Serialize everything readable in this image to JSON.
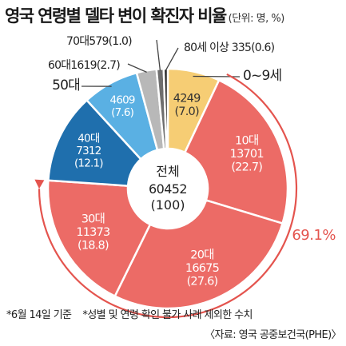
{
  "header": {
    "title": "영국 연령별 델타 변이 확진자 비율",
    "unit": "(단위: 명, %)"
  },
  "chart_data": {
    "type": "pie",
    "title": "영국 연령별 델타 변이 확진자 비율",
    "unit": "(단위: 명, %)",
    "center_label": "전체",
    "total": 60452,
    "total_percent_label": "(100)",
    "slices": [
      {
        "label": "0~9세",
        "count": 4249,
        "percent": 7.0,
        "color": "#f6cd74",
        "text_color": "#333333"
      },
      {
        "label": "10대",
        "count": 13701,
        "percent": 22.7,
        "color": "#ec6b66",
        "text_color": "#ffffff"
      },
      {
        "label": "20대",
        "count": 16675,
        "percent": 27.6,
        "color": "#ec6b66",
        "text_color": "#ffffff"
      },
      {
        "label": "30대",
        "count": 11373,
        "percent": 18.8,
        "color": "#ec6b66",
        "text_color": "#ffffff"
      },
      {
        "label": "40대",
        "count": 7312,
        "percent": 12.1,
        "color": "#1f6fad",
        "text_color": "#ffffff"
      },
      {
        "label": "50대",
        "count": 4609,
        "percent": 7.6,
        "color": "#5ab0e3",
        "text_color": "#ffffff"
      },
      {
        "label": "60대",
        "count": 1619,
        "percent": 2.7,
        "color": "#b8b8b8",
        "text_color": "#333333"
      },
      {
        "label": "70대",
        "count": 579,
        "percent": 1.0,
        "color": "#6e6e6e",
        "text_color": "#333333"
      },
      {
        "label": "80세 이상",
        "count": 335,
        "percent": 0.6,
        "color": "#2b2b2b",
        "text_color": "#333333"
      }
    ],
    "highlight": {
      "value_label": "69.1%",
      "color": "#e4544e"
    }
  },
  "footnotes": {
    "note1": "*6월 14일 기준",
    "note2": "*성별 및 연령 확인 불가 사례 제외한 수치",
    "source": "〈자료: 영국 공중보건국(PHE)〉"
  }
}
